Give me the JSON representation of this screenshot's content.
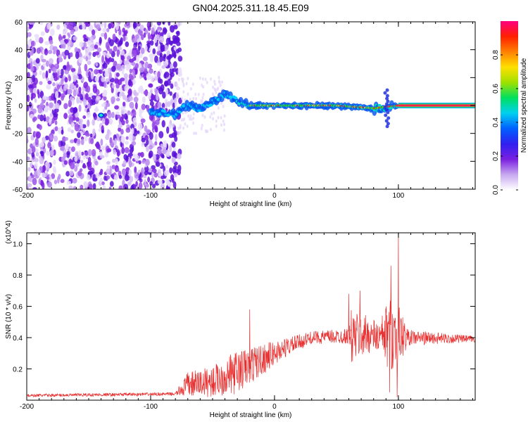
{
  "title": "GN04.2025.311.18.45.E09",
  "chart_data": [
    {
      "type": "heatmap",
      "name": "spectrogram",
      "xlabel": "Height of straight line (km)",
      "ylabel": "Frequency (Hz)",
      "xlim": [
        -200,
        162
      ],
      "ylim": [
        -60,
        60
      ],
      "xticks": [
        -200,
        -100,
        0,
        100
      ],
      "yticks": [
        -60,
        -40,
        -20,
        0,
        20,
        40,
        60
      ],
      "noise_region_end_km": -80,
      "signal_trace": [
        {
          "x": -140,
          "f": -7
        },
        {
          "x": -100,
          "f": -5
        },
        {
          "x": -80,
          "f": -6
        },
        {
          "x": -70,
          "f": 0
        },
        {
          "x": -60,
          "f": -2
        },
        {
          "x": -50,
          "f": 2
        },
        {
          "x": -40,
          "f": 8
        },
        {
          "x": -30,
          "f": 4
        },
        {
          "x": -20,
          "f": 0
        },
        {
          "x": 0,
          "f": 0
        },
        {
          "x": 50,
          "f": 0
        },
        {
          "x": 80,
          "f": -2
        },
        {
          "x": 90,
          "f": -1
        },
        {
          "x": 100,
          "f": 0
        },
        {
          "x": 162,
          "f": 0
        }
      ],
      "colorbar": {
        "label": "Normalized spectral amplitude",
        "range": [
          0,
          1
        ],
        "ticks": [
          "0.0",
          "0.2",
          "0.4",
          "0.6",
          "0.8"
        ],
        "colors": [
          "#ffffff",
          "#c8a8f0",
          "#7a20e0",
          "#3020f0",
          "#0060ff",
          "#00d0f0",
          "#00e060",
          "#a0e000",
          "#ffe000",
          "#ff8000",
          "#ff2000",
          "#ff0080"
        ]
      }
    },
    {
      "type": "line",
      "name": "snr",
      "xlabel": "Height of straight line (km)",
      "ylabel": "SNR (10 * v/v)",
      "multiplier": "(x10^4)",
      "xlim": [
        -200,
        162
      ],
      "ylim": [
        0,
        1.07
      ],
      "xticks": [
        -200,
        -100,
        0,
        100
      ],
      "yticks": [
        "0.2",
        "0.4",
        "0.6",
        "0.8",
        "1.0"
      ],
      "color": "#e83030",
      "envelope": [
        {
          "x": -200,
          "base": 0.03,
          "spread": 0.01
        },
        {
          "x": -80,
          "base": 0.04,
          "spread": 0.01
        },
        {
          "x": -70,
          "base": 0.1,
          "spread": 0.08
        },
        {
          "x": -50,
          "base": 0.12,
          "spread": 0.1
        },
        {
          "x": -30,
          "base": 0.18,
          "spread": 0.14
        },
        {
          "x": -10,
          "base": 0.26,
          "spread": 0.1
        },
        {
          "x": 10,
          "base": 0.34,
          "spread": 0.06
        },
        {
          "x": 30,
          "base": 0.4,
          "spread": 0.04
        },
        {
          "x": 60,
          "base": 0.41,
          "spread": 0.05
        },
        {
          "x": 62,
          "base": 0.4,
          "spread": 0.18
        },
        {
          "x": 75,
          "base": 0.42,
          "spread": 0.12
        },
        {
          "x": 85,
          "base": 0.4,
          "spread": 0.1
        },
        {
          "x": 92,
          "base": 0.42,
          "spread": 0.24
        },
        {
          "x": 100,
          "base": 0.42,
          "spread": 0.2
        },
        {
          "x": 108,
          "base": 0.4,
          "spread": 0.05
        },
        {
          "x": 162,
          "base": 0.39,
          "spread": 0.02
        }
      ],
      "peaks": [
        {
          "x": -20,
          "y": 0.58
        },
        {
          "x": 60,
          "y": 0.68
        },
        {
          "x": 69,
          "y": 0.7
        },
        {
          "x": 94,
          "y": 0.86
        },
        {
          "x": 100,
          "y": 1.07
        },
        {
          "x": 99,
          "y": 0.02
        },
        {
          "x": 93,
          "y": 0.05
        }
      ]
    }
  ]
}
